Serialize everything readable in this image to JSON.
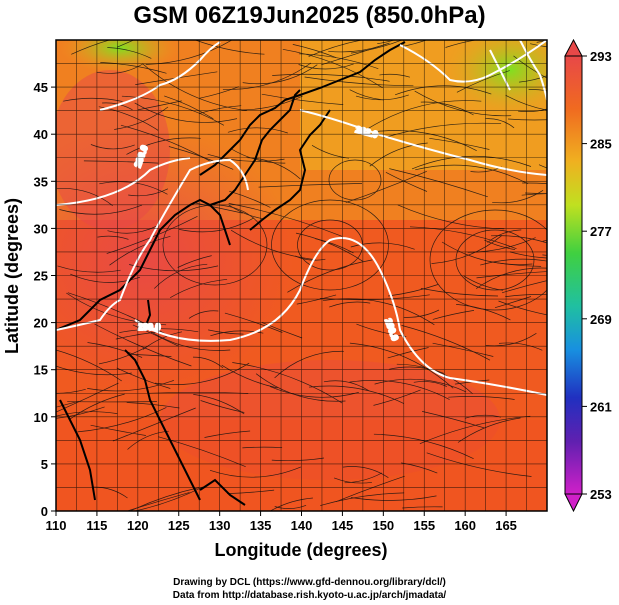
{
  "title": "GSM 06Z19Jun2025 (850.0hPa)",
  "x_axis": {
    "label": "Longitude (degrees)",
    "range": [
      110,
      170
    ],
    "ticks": [
      110,
      115,
      120,
      125,
      130,
      135,
      140,
      145,
      150,
      155,
      160,
      165
    ]
  },
  "y_axis": {
    "label": "Latitude  (degrees)",
    "range": [
      0,
      50
    ],
    "ticks": [
      0,
      5,
      10,
      15,
      20,
      25,
      30,
      35,
      40,
      45
    ]
  },
  "colorbar": {
    "ticks": [
      293,
      285,
      277,
      269,
      261,
      253
    ],
    "range": [
      253,
      293
    ],
    "colors": [
      "#d020c8",
      "#4020b0",
      "#1860e0",
      "#20b8e0",
      "#30d070",
      "#70e020",
      "#d8e020",
      "#f8a020",
      "#f06020",
      "#e04040"
    ]
  },
  "contour_labels": [
    "290.0",
    "290.0",
    "290.0",
    "282.0"
  ],
  "credits": {
    "line1": "Drawing by DCL (https://www.gfd-dennou.org/library/dcl/)",
    "line2": "Data from http://database.rish.kyoto-u.ac.jp/arch/jmadata/"
  }
}
